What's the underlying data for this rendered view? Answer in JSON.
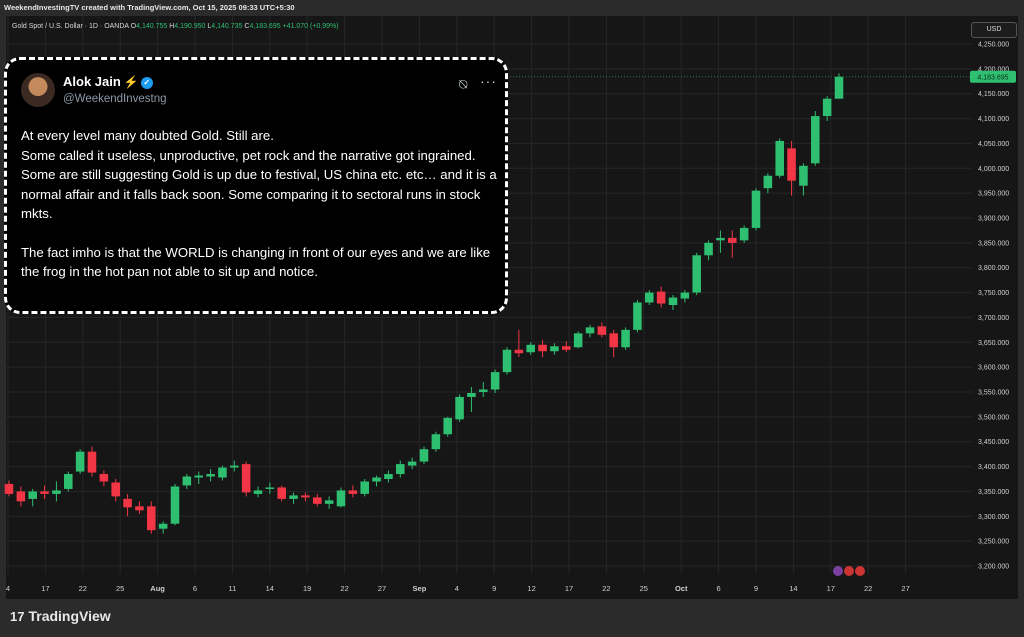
{
  "header": {
    "caption": "WeekendInvestingTV created with TradingView.com, Oct 15, 2025 09:33 UTC+5:30",
    "symbol": "Gold Spot / U.S. Dollar · 1D · OANDA",
    "o_label": "O",
    "o_value": "4,140.755",
    "h_label": "H",
    "h_value": "4,190.950",
    "l_label": "L",
    "l_value": "4,140.735",
    "c_label": "C",
    "c_value": "4,183.695",
    "change": "+41.070 (+0.99%)"
  },
  "currency": "USD",
  "price_tag": "4,183.695",
  "colors": {
    "up": "#2fbf71",
    "down": "#f23645",
    "bg": "#161616",
    "grid": "#262626"
  },
  "tweet": {
    "name": "Alok Jain",
    "bolt": "⚡",
    "verified": "✓",
    "handle": "@WeekendInvestng",
    "grok_icon": "⍉",
    "more_icon": "···",
    "lines": [
      "At every level many doubted Gold.  Still are.",
      "Some called it useless, unproductive, pet rock and the narrative got ingrained.",
      "Some are still suggesting Gold is up due to festival, US china etc. etc… and it is a normal affair and it falls back soon.  Some comparing it to sectoral runs in stock mkts.",
      "The fact imho is that the WORLD is changing in front of our eyes and we are like the frog in the hot pan not able to sit up and notice."
    ]
  },
  "footer": {
    "brand": "TradingView",
    "logo_glyph": "17"
  },
  "chart_data": {
    "type": "candlestick",
    "y_ticks": [
      "4,250.000",
      "4,200.000",
      "4,150.000",
      "4,100.000",
      "4,050.000",
      "4,000.000",
      "3,950.000",
      "3,900.000",
      "3,850.000",
      "3,800.000",
      "3,750.000",
      "3,700.000",
      "3,650.000",
      "3,600.000",
      "3,550.000",
      "3,500.000",
      "3,450.000",
      "3,400.000",
      "3,350.000",
      "3,300.000",
      "3,250.000",
      "3,200.000"
    ],
    "ylim": [
      3190,
      4265
    ],
    "x_ticks": [
      "4",
      "17",
      "22",
      "25",
      "Aug",
      "6",
      "11",
      "14",
      "19",
      "22",
      "27",
      "Sep",
      "4",
      "9",
      "12",
      "17",
      "22",
      "25",
      "Oct",
      "6",
      "9",
      "14",
      "17",
      "22",
      "27"
    ],
    "candles": [
      [
        3365,
        3372,
        3340,
        3345
      ],
      [
        3350,
        3360,
        3320,
        3330
      ],
      [
        3335,
        3355,
        3320,
        3350
      ],
      [
        3350,
        3362,
        3335,
        3345
      ],
      [
        3345,
        3370,
        3330,
        3352
      ],
      [
        3355,
        3390,
        3350,
        3385
      ],
      [
        3390,
        3435,
        3385,
        3430
      ],
      [
        3430,
        3440,
        3380,
        3388
      ],
      [
        3385,
        3392,
        3360,
        3370
      ],
      [
        3368,
        3375,
        3330,
        3340
      ],
      [
        3335,
        3345,
        3300,
        3318
      ],
      [
        3320,
        3330,
        3305,
        3312
      ],
      [
        3320,
        3330,
        3265,
        3272
      ],
      [
        3275,
        3290,
        3265,
        3285
      ],
      [
        3285,
        3365,
        3282,
        3360
      ],
      [
        3362,
        3385,
        3355,
        3380
      ],
      [
        3378,
        3390,
        3365,
        3382
      ],
      [
        3380,
        3395,
        3370,
        3385
      ],
      [
        3378,
        3402,
        3372,
        3398
      ],
      [
        3398,
        3412,
        3390,
        3402
      ],
      [
        3405,
        3410,
        3340,
        3348
      ],
      [
        3345,
        3360,
        3338,
        3352
      ],
      [
        3355,
        3368,
        3345,
        3358
      ],
      [
        3358,
        3362,
        3330,
        3335
      ],
      [
        3335,
        3348,
        3325,
        3342
      ],
      [
        3342,
        3348,
        3330,
        3338
      ],
      [
        3338,
        3345,
        3320,
        3325
      ],
      [
        3325,
        3340,
        3315,
        3332
      ],
      [
        3320,
        3358,
        3318,
        3352
      ],
      [
        3352,
        3362,
        3338,
        3345
      ],
      [
        3345,
        3375,
        3340,
        3370
      ],
      [
        3370,
        3382,
        3360,
        3378
      ],
      [
        3375,
        3392,
        3368,
        3385
      ],
      [
        3385,
        3412,
        3378,
        3405
      ],
      [
        3402,
        3418,
        3395,
        3410
      ],
      [
        3410,
        3440,
        3405,
        3435
      ],
      [
        3435,
        3470,
        3430,
        3465
      ],
      [
        3465,
        3500,
        3460,
        3498
      ],
      [
        3495,
        3545,
        3490,
        3540
      ],
      [
        3540,
        3560,
        3510,
        3548
      ],
      [
        3550,
        3570,
        3540,
        3555
      ],
      [
        3555,
        3595,
        3548,
        3590
      ],
      [
        3590,
        3640,
        3585,
        3635
      ],
      [
        3635,
        3675,
        3620,
        3628
      ],
      [
        3630,
        3650,
        3625,
        3645
      ],
      [
        3645,
        3655,
        3620,
        3632
      ],
      [
        3632,
        3648,
        3625,
        3642
      ],
      [
        3642,
        3652,
        3630,
        3635
      ],
      [
        3640,
        3672,
        3638,
        3668
      ],
      [
        3668,
        3685,
        3660,
        3680
      ],
      [
        3682,
        3690,
        3660,
        3665
      ],
      [
        3668,
        3675,
        3620,
        3640
      ],
      [
        3640,
        3680,
        3635,
        3675
      ],
      [
        3675,
        3735,
        3670,
        3730
      ],
      [
        3730,
        3755,
        3725,
        3750
      ],
      [
        3752,
        3762,
        3720,
        3728
      ],
      [
        3725,
        3745,
        3715,
        3740
      ],
      [
        3738,
        3755,
        3730,
        3750
      ],
      [
        3750,
        3830,
        3745,
        3825
      ],
      [
        3825,
        3855,
        3815,
        3850
      ],
      [
        3855,
        3875,
        3830,
        3860
      ],
      [
        3860,
        3875,
        3820,
        3850
      ],
      [
        3855,
        3885,
        3850,
        3880
      ],
      [
        3880,
        3960,
        3875,
        3955
      ],
      [
        3960,
        3990,
        3950,
        3985
      ],
      [
        3985,
        4060,
        3980,
        4055
      ],
      [
        4040,
        4055,
        3945,
        3975
      ],
      [
        3965,
        4010,
        3945,
        4005
      ],
      [
        4010,
        4115,
        4005,
        4105
      ],
      [
        4105,
        4145,
        4095,
        4140
      ],
      [
        4140,
        4191,
        4140,
        4184
      ]
    ]
  }
}
